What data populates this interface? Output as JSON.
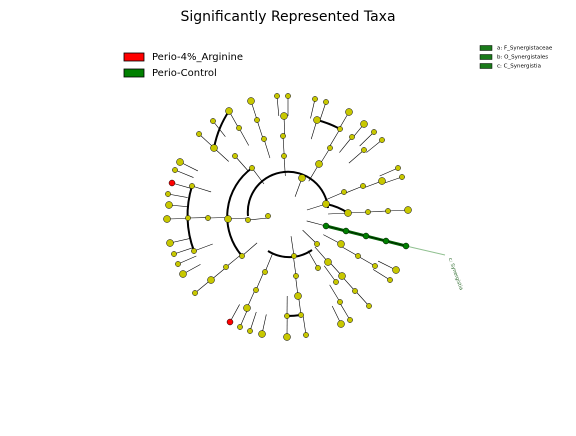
{
  "title": "Significantly Represented Taxa",
  "legend": [
    {
      "label": "Perio-4%_Arginine",
      "color": "#ff0000"
    },
    {
      "label": "Perio-Control",
      "color": "#008000"
    }
  ],
  "key": [
    "a: F_Synergistaceae",
    "b: O_Synergistales",
    "c: C_Synergistia"
  ],
  "clade_label": "c: Synergistia"
}
